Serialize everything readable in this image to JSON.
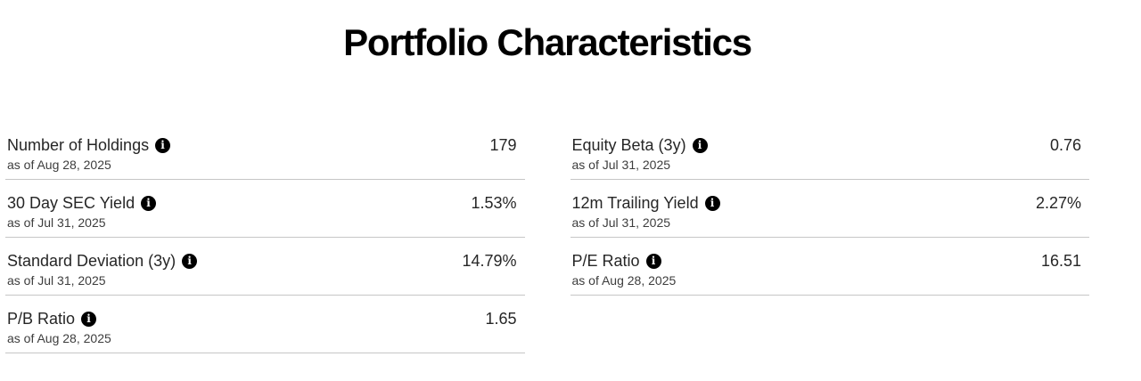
{
  "title": "Portfolio Characteristics",
  "icons": {
    "info_glyph": "i"
  },
  "colors": {
    "title": "#000000",
    "label": "#262626",
    "value": "#262626",
    "date": "#3d3d3d",
    "divider": "#c6c6c6",
    "info_icon_bg": "#000000",
    "info_icon_fg": "#ffffff"
  },
  "columns": [
    {
      "rows": [
        {
          "label": "Number of Holdings",
          "value": "179",
          "as_of": "as of Aug 28, 2025"
        },
        {
          "label": "30 Day SEC Yield",
          "value": "1.53%",
          "as_of": "as of Jul 31, 2025"
        },
        {
          "label": "Standard Deviation (3y)",
          "value": "14.79%",
          "as_of": "as of Jul 31, 2025"
        },
        {
          "label": "P/B Ratio",
          "value": "1.65",
          "as_of": "as of Aug 28, 2025"
        }
      ]
    },
    {
      "rows": [
        {
          "label": "Equity Beta (3y)",
          "value": "0.76",
          "as_of": "as of Jul 31, 2025"
        },
        {
          "label": "12m Trailing Yield",
          "value": "2.27%",
          "as_of": "as of Jul 31, 2025"
        },
        {
          "label": "P/E Ratio",
          "value": "16.51",
          "as_of": "as of Aug 28, 2025"
        }
      ]
    }
  ]
}
